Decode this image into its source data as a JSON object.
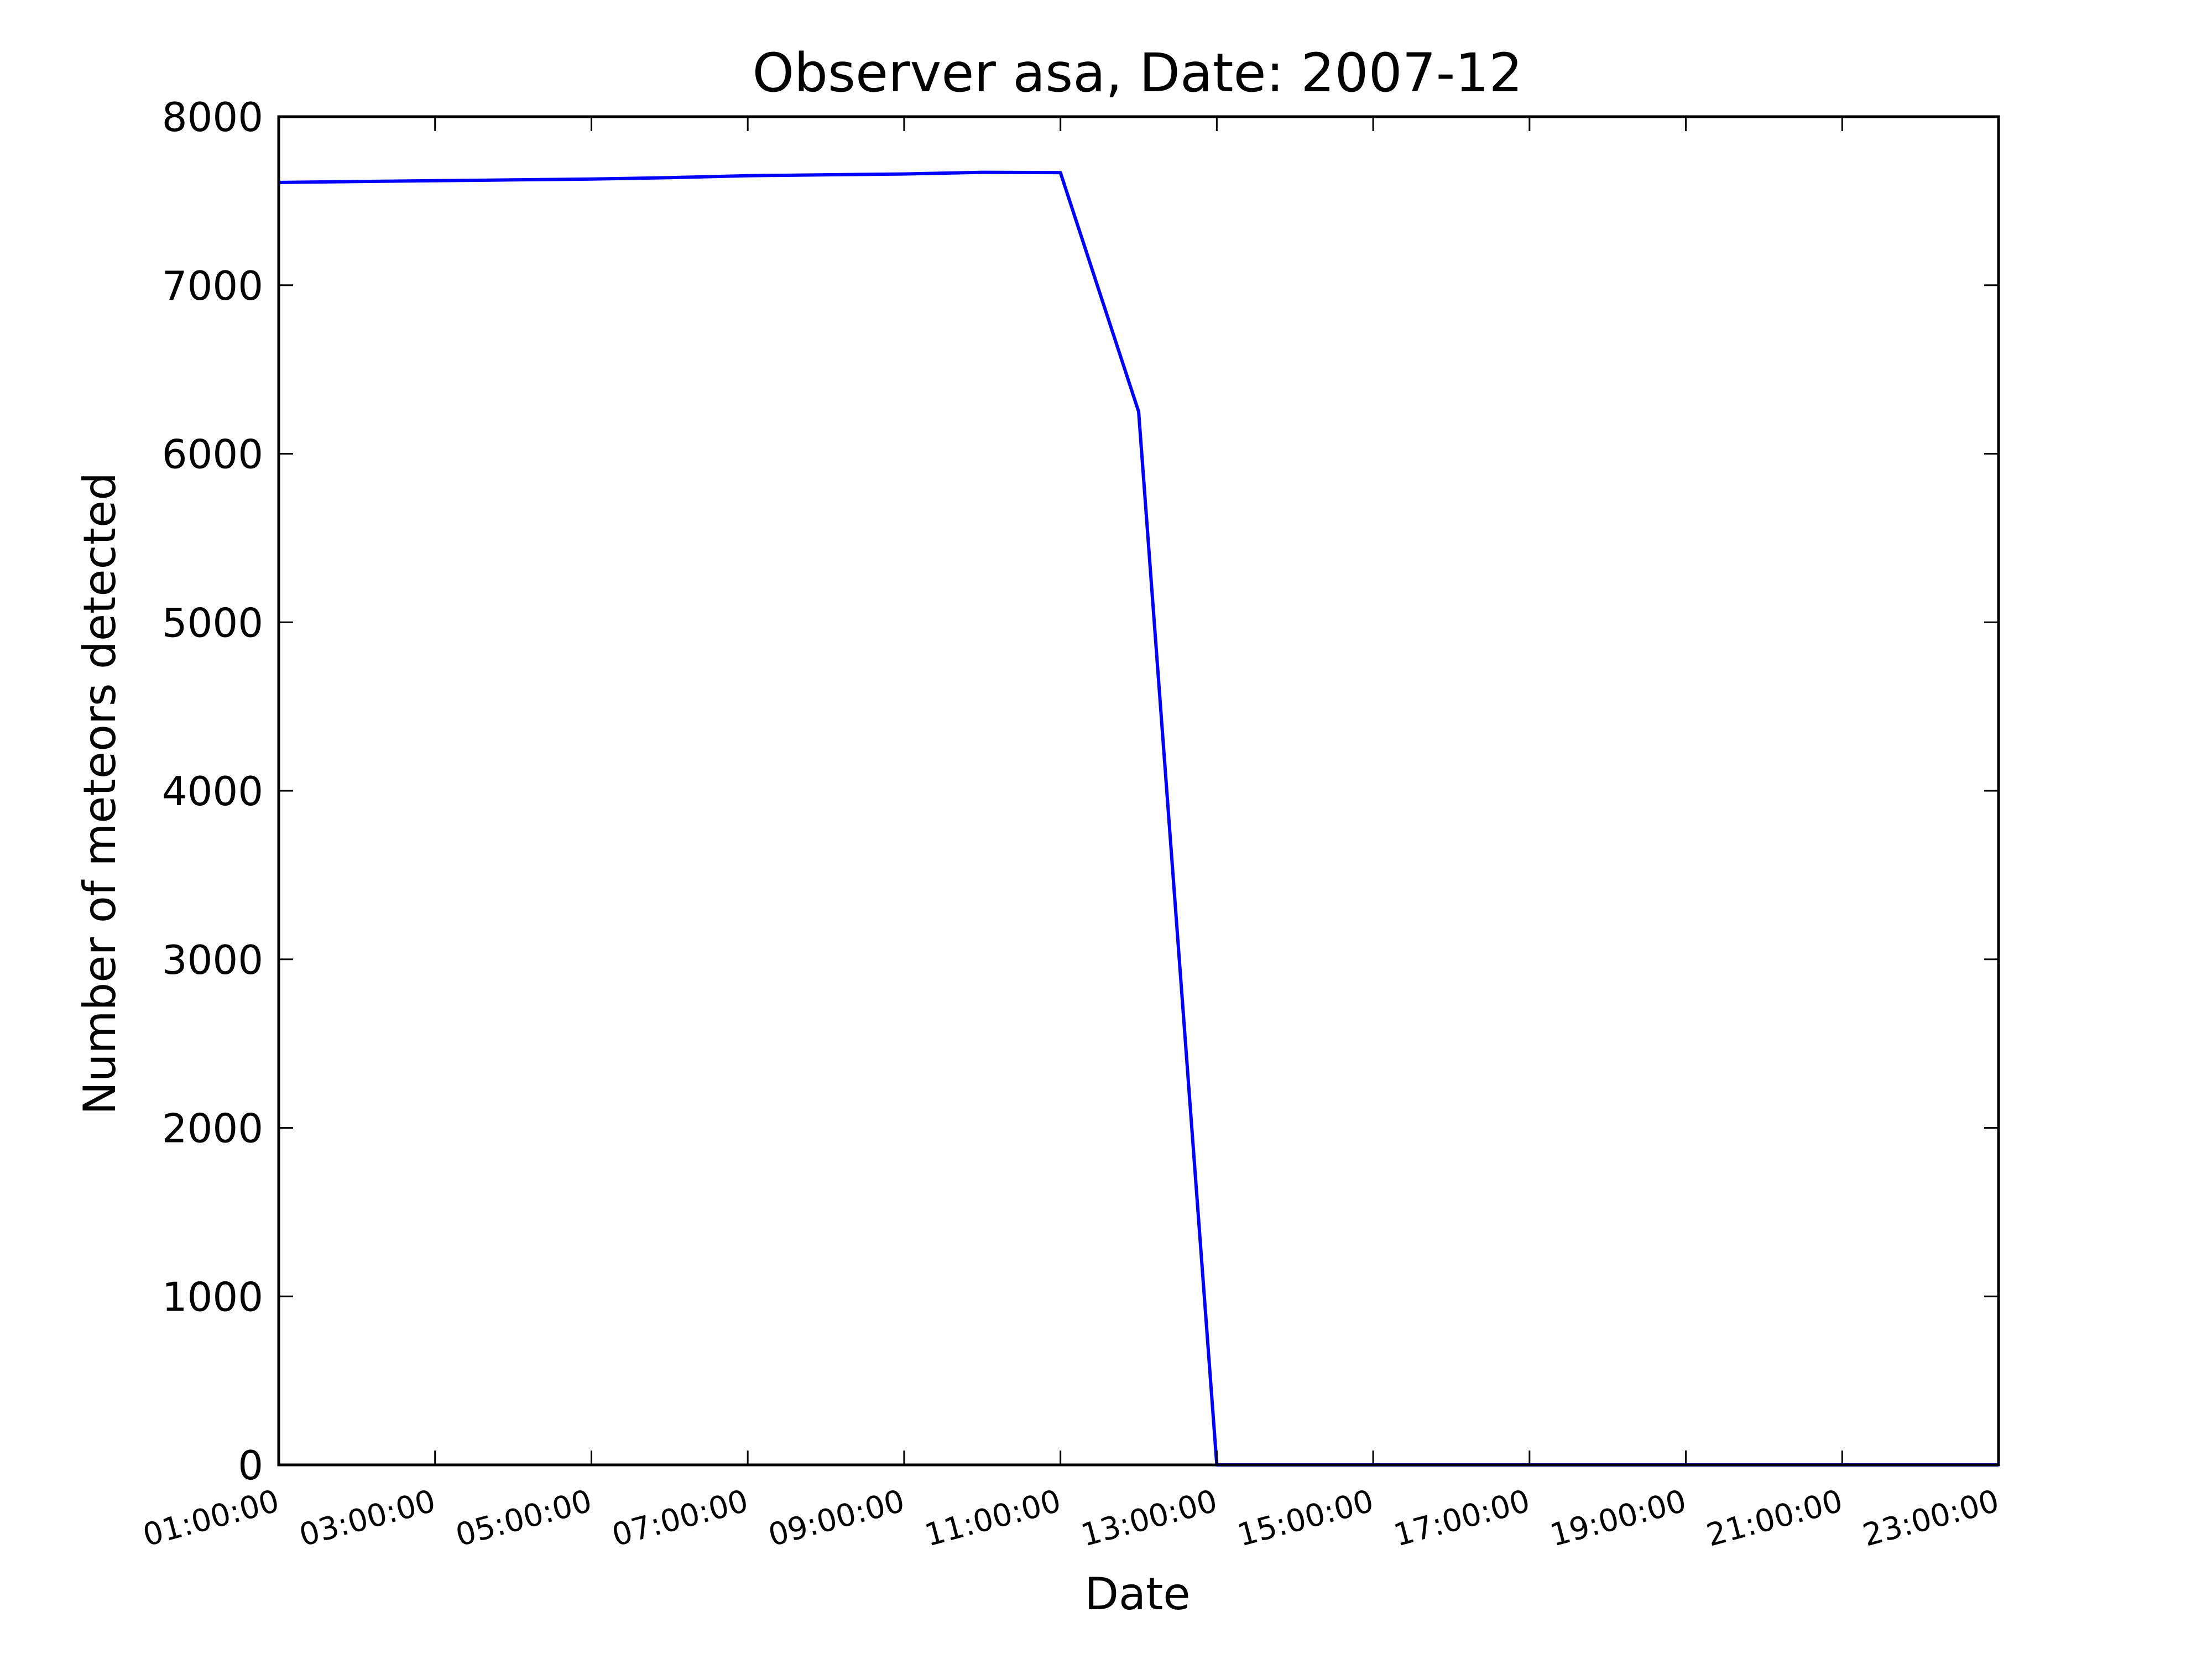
{
  "chart_data": {
    "type": "line",
    "title": "Observer asa, Date: 2007-12",
    "xlabel": "Date",
    "ylabel": "Number of meteors detected",
    "x_ticks": [
      "01:00:00",
      "03:00:00",
      "05:00:00",
      "07:00:00",
      "09:00:00",
      "11:00:00",
      "13:00:00",
      "15:00:00",
      "17:00:00",
      "19:00:00",
      "21:00:00",
      "23:00:00"
    ],
    "y_ticks": [
      0,
      1000,
      2000,
      3000,
      4000,
      5000,
      6000,
      7000,
      8000
    ],
    "xlim": [
      "01:00:00",
      "23:00:00"
    ],
    "ylim": [
      0,
      8000
    ],
    "grid": false,
    "series": [
      {
        "color": "#0000ff",
        "x": [
          "01:00:00",
          "02:00:00",
          "03:00:00",
          "04:00:00",
          "05:00:00",
          "06:00:00",
          "07:00:00",
          "08:00:00",
          "09:00:00",
          "10:00:00",
          "11:00:00",
          "12:00:00",
          "13:00:00",
          "14:00:00",
          "15:00:00",
          "16:00:00",
          "17:00:00",
          "18:00:00",
          "19:00:00",
          "20:00:00",
          "21:00:00",
          "22:00:00",
          "23:00:00"
        ],
        "values": [
          7610,
          7615,
          7620,
          7625,
          7630,
          7638,
          7650,
          7655,
          7660,
          7670,
          7668,
          6250,
          0,
          0,
          0,
          0,
          0,
          0,
          0,
          0,
          0,
          0,
          0
        ]
      }
    ]
  }
}
